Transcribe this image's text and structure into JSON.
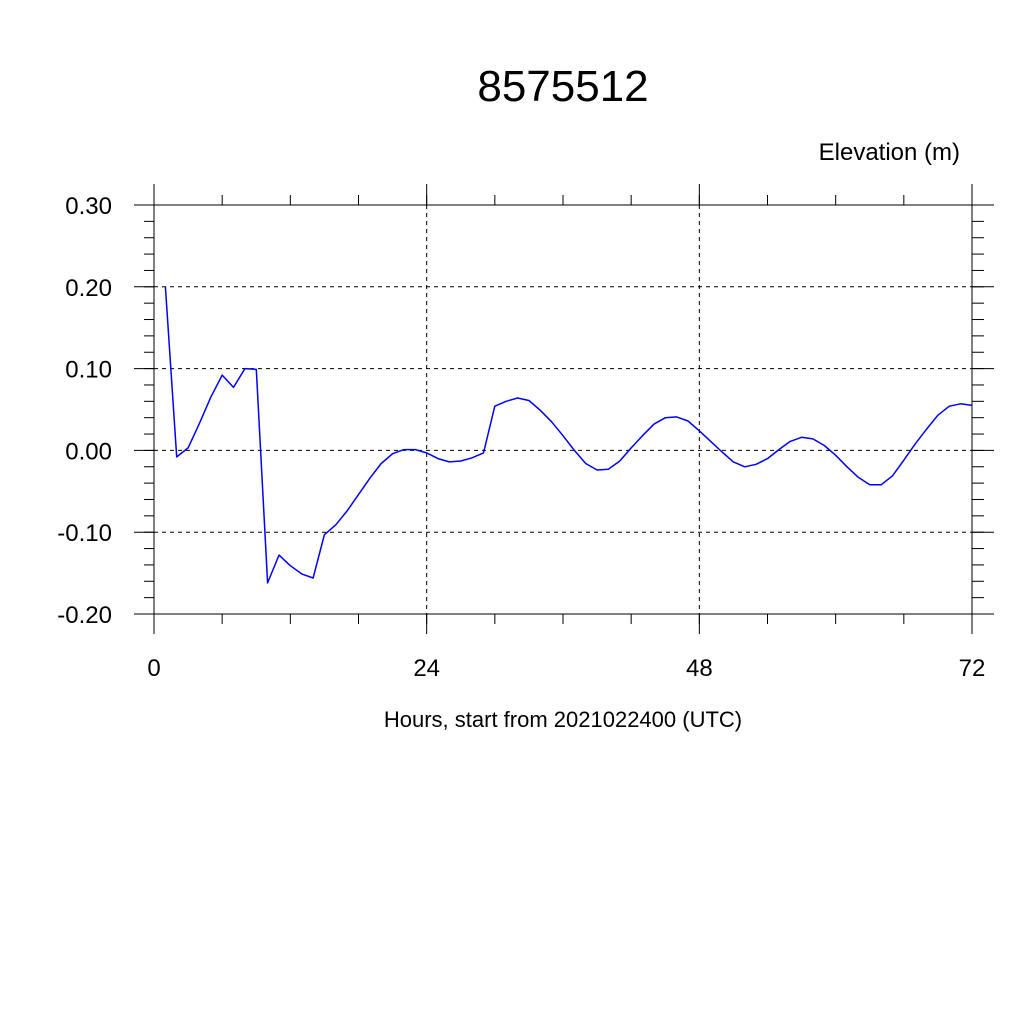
{
  "chart_data": {
    "type": "line",
    "title": "8575512",
    "ylabel": "Elevation (m)",
    "xlabel": "Hours, start from 2021022400 (UTC)",
    "xlim": [
      0,
      72
    ],
    "ylim": [
      -0.2,
      0.3
    ],
    "x_ticks": [
      0,
      24,
      48,
      72
    ],
    "x_tick_labels": [
      "0",
      "24",
      "48",
      "72"
    ],
    "y_ticks": [
      -0.2,
      -0.1,
      0.0,
      0.1,
      0.2,
      0.3
    ],
    "y_tick_labels": [
      "-0.20",
      "-0.10",
      "0.00",
      "0.10",
      "0.20",
      "0.30"
    ],
    "grid": true,
    "line_color": "#0000ff",
    "series": [
      {
        "x": [
          1,
          2,
          3,
          4,
          5,
          6,
          7,
          8,
          9,
          10,
          11,
          12,
          13,
          14,
          15,
          16,
          17,
          18,
          19,
          20,
          21,
          22,
          23,
          24,
          25,
          26,
          27,
          28,
          29,
          30,
          31,
          32,
          33,
          34,
          35,
          36,
          37,
          38,
          39,
          40,
          41,
          42,
          43,
          44,
          45,
          46,
          47,
          48,
          49,
          50,
          51,
          52,
          53,
          54,
          55,
          56,
          57,
          58,
          59,
          60,
          61,
          62,
          63,
          64,
          65,
          66,
          67,
          68,
          69,
          70,
          71,
          72
        ],
        "values": [
          0.2,
          -0.008,
          0.003,
          0.033,
          0.065,
          0.092,
          0.077,
          0.1,
          0.099,
          -0.162,
          -0.128,
          -0.141,
          -0.151,
          -0.156,
          -0.103,
          -0.091,
          -0.074,
          -0.054,
          -0.034,
          -0.016,
          -0.004,
          0.001,
          0.001,
          -0.003,
          -0.01,
          -0.014,
          -0.013,
          -0.009,
          -0.003,
          0.054,
          0.06,
          0.064,
          0.061,
          0.049,
          0.035,
          0.018,
          0.0,
          -0.016,
          -0.024,
          -0.023,
          -0.013,
          0.003,
          0.018,
          0.032,
          0.04,
          0.041,
          0.036,
          0.024,
          0.011,
          -0.002,
          -0.014,
          -0.02,
          -0.017,
          -0.01,
          0.001,
          0.011,
          0.016,
          0.014,
          0.006,
          -0.006,
          -0.02,
          -0.033,
          -0.042,
          -0.042,
          -0.031,
          -0.012,
          0.008,
          0.026,
          0.043,
          0.054,
          0.057,
          0.055
        ]
      }
    ]
  }
}
